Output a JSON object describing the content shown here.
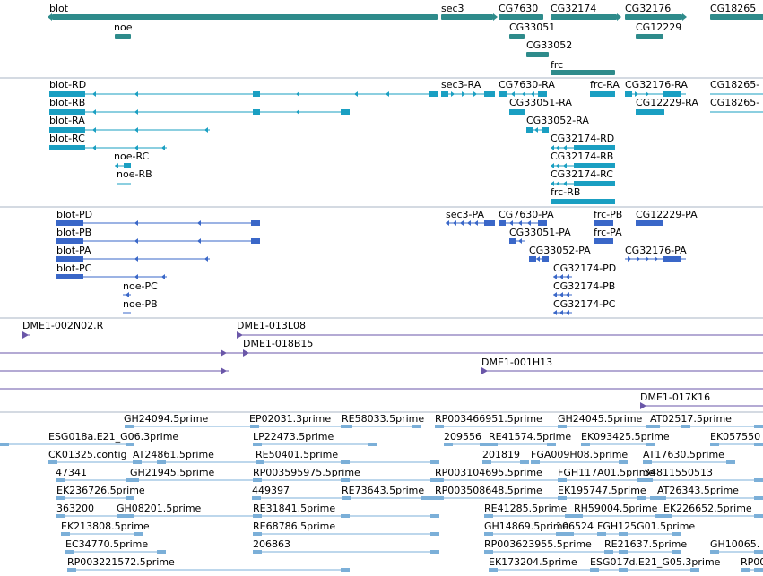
{
  "colors": {
    "gene": "#2e8b8b",
    "transcript": "#1a9fc2",
    "protein": "#3a67c8",
    "clone": "#6a56a8",
    "est": "#7bafd8",
    "divider": "#a9b5c4"
  },
  "tracks": {
    "genes": [
      {
        "id": "blot",
        "label": "blot",
        "strand": "-"
      },
      {
        "id": "noe",
        "label": "noe"
      },
      {
        "id": "sec3",
        "label": "sec3",
        "strand": "+"
      },
      {
        "id": "cg7630",
        "label": "CG7630"
      },
      {
        "id": "cg33051",
        "label": "CG33051"
      },
      {
        "id": "cg33052",
        "label": "CG33052"
      },
      {
        "id": "frc",
        "label": "frc"
      },
      {
        "id": "cg32174",
        "label": "CG32174",
        "strand": "+"
      },
      {
        "id": "cg12229",
        "label": "CG12229"
      },
      {
        "id": "cg32176",
        "label": "CG32176",
        "strand": "+"
      },
      {
        "id": "cg18265",
        "label": "CG18265"
      }
    ],
    "transcripts": [
      {
        "id": "blot-rd",
        "label": "blot-RD"
      },
      {
        "id": "blot-rb",
        "label": "blot-RB"
      },
      {
        "id": "blot-ra",
        "label": "blot-RA"
      },
      {
        "id": "blot-rc",
        "label": "blot-RC"
      },
      {
        "id": "noe-rc",
        "label": "noe-RC"
      },
      {
        "id": "noe-rb",
        "label": "noe-RB"
      },
      {
        "id": "sec3-ra",
        "label": "sec3-RA"
      },
      {
        "id": "cg7630-ra",
        "label": "CG7630-RA"
      },
      {
        "id": "frc-ra",
        "label": "frc-RA"
      },
      {
        "id": "cg32176-ra",
        "label": "CG32176-RA"
      },
      {
        "id": "cg18265-ra",
        "label": "CG18265-"
      },
      {
        "id": "cg33051-ra",
        "label": "CG33051-RA"
      },
      {
        "id": "cg12229-ra",
        "label": "CG12229-RA"
      },
      {
        "id": "cg18265-rb",
        "label": "CG18265-"
      },
      {
        "id": "cg33052-ra",
        "label": "CG33052-RA"
      },
      {
        "id": "cg32174-rd",
        "label": "CG32174-RD"
      },
      {
        "id": "cg32174-rb",
        "label": "CG32174-RB"
      },
      {
        "id": "cg32174-rc",
        "label": "CG32174-RC"
      },
      {
        "id": "frc-rb",
        "label": "frc-RB"
      }
    ],
    "proteins": [
      {
        "id": "blot-pd",
        "label": "blot-PD"
      },
      {
        "id": "blot-pb",
        "label": "blot-PB"
      },
      {
        "id": "blot-pa",
        "label": "blot-PA"
      },
      {
        "id": "blot-pc",
        "label": "blot-PC"
      },
      {
        "id": "noe-pc",
        "label": "noe-PC"
      },
      {
        "id": "noe-pb",
        "label": "noe-PB"
      },
      {
        "id": "sec3-pa",
        "label": "sec3-PA"
      },
      {
        "id": "cg7630-pa",
        "label": "CG7630-PA"
      },
      {
        "id": "frc-pb",
        "label": "frc-PB"
      },
      {
        "id": "cg12229-pa",
        "label": "CG12229-PA"
      },
      {
        "id": "cg33051-pa",
        "label": "CG33051-PA"
      },
      {
        "id": "frc-pa",
        "label": "frc-PA"
      },
      {
        "id": "cg33052-pa",
        "label": "CG33052-PA"
      },
      {
        "id": "cg32176-pa",
        "label": "CG32176-PA"
      },
      {
        "id": "cg32174-pd",
        "label": "CG32174-PD"
      },
      {
        "id": "cg32174-pb",
        "label": "CG32174-PB"
      },
      {
        "id": "cg32174-pc",
        "label": "CG32174-PC"
      }
    ],
    "clones": [
      {
        "id": "dme1-002n02",
        "label": "DME1-002N02.R"
      },
      {
        "id": "dme1-013l08",
        "label": "DME1-013L08"
      },
      {
        "id": "dme1-018b15",
        "label": "DME1-018B15"
      },
      {
        "id": "dme1-001h13",
        "label": "DME1-001H13"
      },
      {
        "id": "dme1-017k16",
        "label": "DME1-017K16"
      }
    ],
    "ests": [
      "GH24094.5prime",
      "EP02031.3prime",
      "RE58033.5prime",
      "RP003466951.5prime",
      "GH24045.5prime",
      "AT02517.5prime",
      "ESG018a.E21_G06.3prime",
      "LP22473.5prime",
      "209556",
      "RE41574.5prime",
      "EK093425.5prime",
      "EK057550",
      "CK01325.contig",
      "AT24861.5prime",
      "RE50401.5prime",
      "201819",
      "FGA009H08.5prime",
      "AT17630.5prime",
      "47341",
      "GH21945.5prime",
      "RP003595975.5prime",
      "RP003104695.5prime",
      "FGH117A01.5prime",
      "34811550513",
      "EK236726.5prime",
      "449397",
      "RE73643.5prime",
      "RP003508648.5prime",
      "EK195747.5prime",
      "AT26343.5prime",
      "363200",
      "GH08201.5prime",
      "RE31841.5prime",
      "RE41285.5prime",
      "RH59004.5prime",
      "EK226652.5prime",
      "EK213808.5prime",
      "RE68786.5prime",
      "GH14869.5prime",
      "106524",
      "FGH125G01.5prime",
      "EC34770.5prime",
      "206863",
      "RP003623955.5prime",
      "RE21637.5prime",
      "GH10065.",
      "RP003221572.5prime",
      "EK173204.5prime",
      "ESG017d.E21_G05.3prime",
      "RP00"
    ]
  }
}
